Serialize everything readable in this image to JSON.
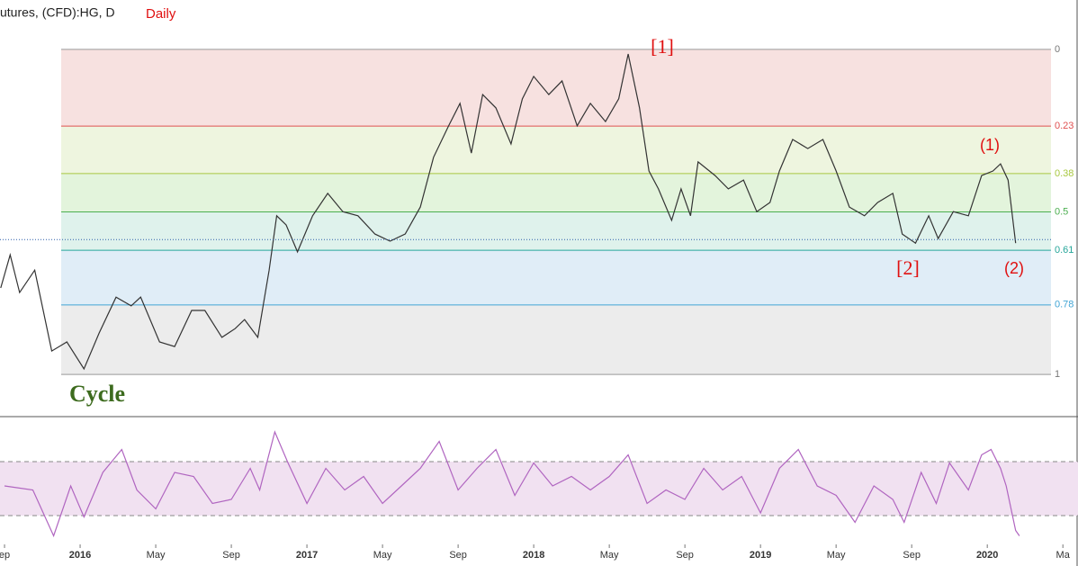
{
  "chart_data": [
    {
      "type": "line",
      "title": "utures, (CFD):HG, D",
      "subtitle": "Daily",
      "color": "#333333",
      "annotations": [
        "[1]",
        "[2]",
        "(1)",
        "(2)",
        "Cycle"
      ],
      "xlim": [
        -0.24,
        56.8
      ],
      "ylim": [
        1.127,
        -0.152
      ],
      "yticks": [
        0,
        {
          "value": 0.236,
          "label": "0.23"
        },
        {
          "value": 0.382,
          "label": "0.38"
        },
        0.5,
        {
          "value": 0.618,
          "label": "0.61"
        },
        {
          "value": 0.786,
          "label": "0.78"
        },
        1
      ],
      "level_colors": [
        "#999999",
        "#e05050",
        "#a8c840",
        "#4caf50",
        "#26a69a",
        "#42a5d5",
        "#999999"
      ],
      "band_colors": [
        "#f7e1e0",
        "#eef5df",
        "#e3f4dc",
        "#dff2ec",
        "#e0edf7",
        "#ececec"
      ],
      "x": [
        -0.2,
        0.3,
        0.8,
        1.6,
        2.5,
        3.3,
        4.2,
        5.0,
        5.9,
        6.7,
        7.2,
        8.2,
        9.0,
        9.9,
        10.6,
        11.5,
        12.2,
        12.7,
        13.4,
        14.0,
        14.4,
        14.9,
        15.5,
        16.3,
        17.1,
        17.9,
        18.7,
        19.6,
        20.4,
        21.2,
        22.0,
        22.7,
        23.5,
        24.1,
        24.7,
        25.3,
        26.0,
        26.8,
        27.4,
        28.0,
        28.8,
        29.5,
        30.3,
        31.0,
        31.8,
        32.5,
        33.0,
        33.6,
        34.1,
        34.6,
        35.3,
        35.8,
        36.3,
        36.7,
        37.6,
        38.3,
        39.1,
        39.8,
        40.5,
        41.0,
        41.7,
        42.5,
        43.3,
        44.0,
        44.7,
        45.5,
        46.2,
        47.0,
        47.5,
        48.2,
        48.9,
        49.4,
        50.2,
        51.0,
        51.7,
        52.3,
        52.7,
        53.1,
        53.5
      ],
      "values": [
        0.734,
        0.632,
        0.748,
        0.679,
        0.928,
        0.9,
        0.983,
        0.873,
        0.762,
        0.789,
        0.762,
        0.9,
        0.914,
        0.803,
        0.803,
        0.886,
        0.859,
        0.831,
        0.886,
        0.679,
        0.512,
        0.54,
        0.623,
        0.512,
        0.443,
        0.499,
        0.512,
        0.568,
        0.59,
        0.568,
        0.485,
        0.332,
        0.235,
        0.166,
        0.319,
        0.139,
        0.18,
        0.291,
        0.152,
        0.083,
        0.139,
        0.097,
        0.235,
        0.166,
        0.222,
        0.152,
        0.014,
        0.18,
        0.374,
        0.429,
        0.526,
        0.429,
        0.512,
        0.346,
        0.388,
        0.429,
        0.402,
        0.499,
        0.471,
        0.374,
        0.277,
        0.305,
        0.277,
        0.374,
        0.485,
        0.512,
        0.471,
        0.443,
        0.568,
        0.596,
        0.512,
        0.582,
        0.499,
        0.512,
        0.388,
        0.374,
        0.352,
        0.402,
        0.596
      ]
    },
    {
      "type": "line",
      "color": "#b065c0",
      "band_color": "#f1e1f1",
      "xlim": [
        -0.24,
        56.8
      ],
      "ylim": [
        8.7,
        102
      ],
      "levels": [
        30,
        70
      ],
      "xticks": [
        {
          "value": 0,
          "label": "ep"
        },
        {
          "value": 4,
          "label": "2016"
        },
        {
          "value": 8,
          "label": "May"
        },
        {
          "value": 12,
          "label": "Sep"
        },
        {
          "value": 16,
          "label": "2017"
        },
        {
          "value": 20,
          "label": "May"
        },
        {
          "value": 24,
          "label": "Sep"
        },
        {
          "value": 28,
          "label": "2018"
        },
        {
          "value": 32,
          "label": "May"
        },
        {
          "value": 36,
          "label": "Sep"
        },
        {
          "value": 40,
          "label": "2019"
        },
        {
          "value": 44,
          "label": "May"
        },
        {
          "value": 48,
          "label": "Sep"
        },
        {
          "value": 52,
          "label": "2020"
        },
        {
          "value": 56,
          "label": "Ma"
        }
      ],
      "x": [
        0,
        1.5,
        2.6,
        3.5,
        4.2,
        5.2,
        6.2,
        7,
        8,
        9,
        10,
        11,
        12,
        13,
        13.5,
        14.3,
        15,
        16,
        17,
        18,
        19,
        20,
        21,
        22,
        23,
        24,
        25,
        26,
        27,
        28,
        29,
        30,
        31,
        32,
        33,
        34,
        35,
        36,
        37,
        38,
        39,
        40,
        41,
        42,
        43,
        44,
        45,
        46,
        47,
        47.6,
        48.5,
        49.3,
        50,
        51,
        51.7,
        52.2,
        52.7,
        53,
        53.5,
        53.7
      ],
      "values": [
        52,
        49,
        15,
        52,
        29,
        62,
        79,
        49,
        35,
        62,
        59,
        39,
        42,
        65,
        49,
        92,
        69,
        39,
        65,
        49,
        59,
        39,
        52,
        65,
        85,
        49,
        65,
        79,
        45,
        69,
        52,
        59,
        49,
        59,
        75,
        39,
        49,
        42,
        65,
        49,
        59,
        32,
        65,
        79,
        52,
        45,
        25,
        52,
        42,
        25,
        62,
        39,
        69,
        49,
        75,
        79,
        65,
        52,
        19,
        15
      ]
    }
  ]
}
